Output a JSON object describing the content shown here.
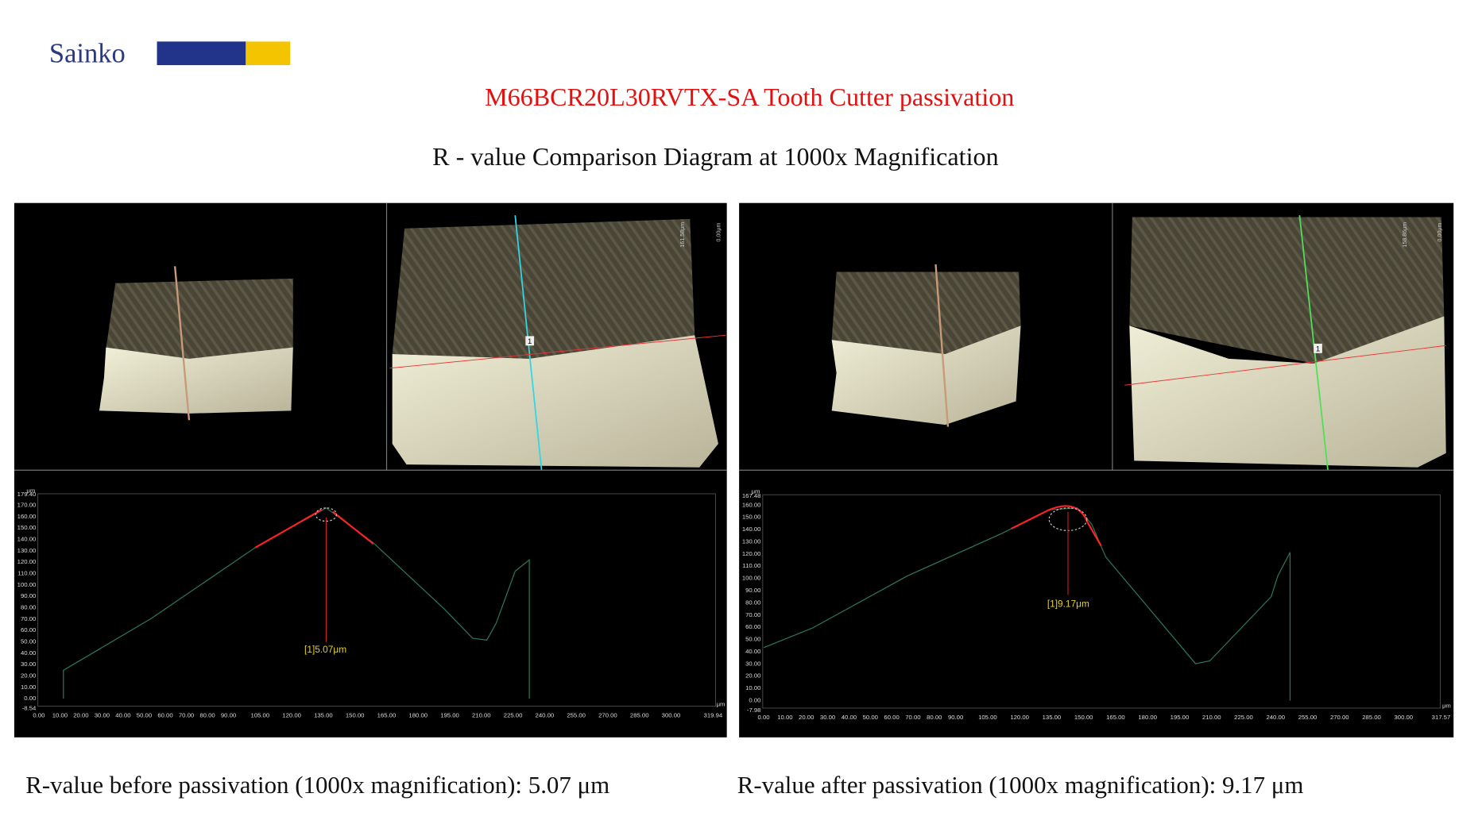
{
  "header": {
    "brand": "Sainko",
    "title": "M66BCR20L30RVTX-SA  Tooth Cutter passivation",
    "subtitle": "R - value Comparison Diagram at 1000x Magnification"
  },
  "panels": [
    {
      "scale_label": "161.58μm",
      "scale_zero": "0.00μm",
      "marker": "1",
      "profile": {
        "y_unit": "μm",
        "x_unit": "μm",
        "yticks": [
          "179.40",
          "170.00",
          "160.00",
          "150.00",
          "140.00",
          "130.00",
          "120.00",
          "110.00",
          "100.00",
          "90.00",
          "80.00",
          "70.00",
          "60.00",
          "50.00",
          "40.00",
          "30.00",
          "20.00",
          "10.00",
          "0.00",
          "-8.54"
        ],
        "xticks": [
          "0.00",
          "10.00",
          "20.00",
          "30.00",
          "40.00",
          "50.00",
          "60.00",
          "70.00",
          "80.00",
          "90.00",
          "105.00",
          "120.00",
          "135.00",
          "150.00",
          "165.00",
          "180.00",
          "195.00",
          "210.00",
          "225.00",
          "240.00",
          "255.00",
          "270.00",
          "285.00",
          "300.00",
          "319.94"
        ],
        "annotation": "[1]5.07μm"
      }
    },
    {
      "scale_label": "158.86μm",
      "scale_zero": "0.00μm",
      "marker": "1",
      "profile": {
        "y_unit": "μm",
        "x_unit": "μm",
        "yticks": [
          "167.48",
          "160.00",
          "150.00",
          "140.00",
          "130.00",
          "120.00",
          "110.00",
          "100.00",
          "90.00",
          "80.00",
          "70.00",
          "60.00",
          "50.00",
          "40.00",
          "30.00",
          "20.00",
          "10.00",
          "0.00",
          "-7.98"
        ],
        "xticks": [
          "0.00",
          "10.00",
          "20.00",
          "30.00",
          "40.00",
          "50.00",
          "60.00",
          "70.00",
          "80.00",
          "90.00",
          "105.00",
          "120.00",
          "135.00",
          "150.00",
          "165.00",
          "180.00",
          "195.00",
          "210.00",
          "225.00",
          "240.00",
          "255.00",
          "270.00",
          "285.00",
          "300.00",
          "317.57"
        ],
        "annotation": "[1]9.17μm"
      }
    }
  ],
  "captions": [
    "R-value before passivation (1000x magnification): 5.07 μm",
    "R-value after passivation (1000x magnification): 9.17 μm"
  ]
}
